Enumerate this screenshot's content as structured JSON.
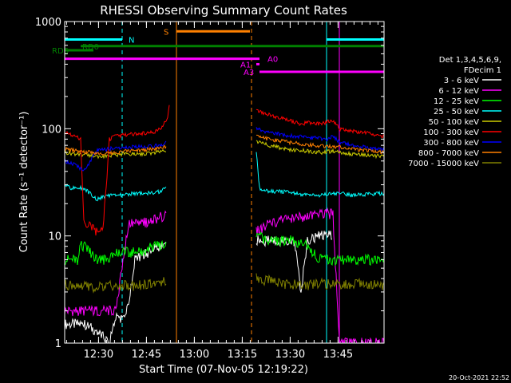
{
  "chart_data": {
    "type": "line",
    "title": "RHESSI Observing Summary Count Rates",
    "xlabel": "Start Time (07-Nov-05 12:19:22)",
    "ylabel": "Count Rate (s⁻¹ detector⁻¹)",
    "yscale": "log",
    "ylim": [
      1,
      1000
    ],
    "xlim_minutes": [
      0,
      100
    ],
    "x_ticks": [
      {
        "label": "12:30",
        "m": 10.6
      },
      {
        "label": "12:45",
        "m": 25.6
      },
      {
        "label": "13:00",
        "m": 40.6
      },
      {
        "label": "13:15",
        "m": 55.6
      },
      {
        "label": "13:30",
        "m": 70.6
      },
      {
        "label": "13:45",
        "m": 85.6
      }
    ],
    "y_ticks": [
      {
        "label": "1000",
        "v": 1000
      },
      {
        "label": "100",
        "v": 100
      },
      {
        "label": "10",
        "v": 10
      },
      {
        "label": "1",
        "v": 1
      }
    ],
    "legend_header": [
      "Det 1,3,4,5,6,9,",
      "FDecim 1"
    ],
    "series": [
      {
        "name": "3 - 6 keV",
        "color": "#ffffff",
        "values": [
          [
            0,
            1.5
          ],
          [
            6,
            1.5
          ],
          [
            10,
            1.3
          ],
          [
            14,
            1
          ],
          [
            16,
            1.8
          ],
          [
            18,
            1.7
          ],
          [
            20,
            2.2
          ],
          [
            22,
            6
          ],
          [
            26,
            7
          ],
          [
            30,
            8
          ],
          [
            32,
            9
          ],
          [
            44,
            null
          ],
          [
            60,
            9
          ],
          [
            64,
            9
          ],
          [
            72,
            9
          ],
          [
            74,
            3
          ],
          [
            76,
            9
          ],
          [
            80,
            10
          ],
          [
            84,
            10
          ],
          [
            86,
            null
          ]
        ]
      },
      {
        "name": "6 - 12 keV",
        "color": "#ff00ff",
        "values": [
          [
            0,
            2
          ],
          [
            4,
            2
          ],
          [
            8,
            2
          ],
          [
            12,
            2
          ],
          [
            16,
            2
          ],
          [
            20,
            13
          ],
          [
            24,
            13
          ],
          [
            28,
            14
          ],
          [
            30,
            15
          ],
          [
            32,
            16
          ],
          [
            44,
            null
          ],
          [
            60,
            11
          ],
          [
            64,
            13
          ],
          [
            68,
            14
          ],
          [
            72,
            15
          ],
          [
            76,
            15
          ],
          [
            80,
            16
          ],
          [
            84,
            16
          ],
          [
            86,
            1
          ],
          [
            100,
            1
          ]
        ]
      },
      {
        "name": "12 - 25 keV",
        "color": "#00ff00",
        "values": [
          [
            0,
            6
          ],
          [
            4,
            6
          ],
          [
            5,
            8
          ],
          [
            6,
            8
          ],
          [
            10,
            6
          ],
          [
            14,
            6
          ],
          [
            16,
            7
          ],
          [
            20,
            7
          ],
          [
            24,
            7
          ],
          [
            28,
            8
          ],
          [
            30,
            8
          ],
          [
            32,
            9
          ],
          [
            44,
            null
          ],
          [
            60,
            10
          ],
          [
            64,
            9
          ],
          [
            68,
            9
          ],
          [
            72,
            9
          ],
          [
            76,
            8
          ],
          [
            80,
            6
          ],
          [
            86,
            6
          ],
          [
            90,
            6
          ],
          [
            100,
            6
          ]
        ]
      },
      {
        "name": "25 - 50 keV",
        "color": "#00ffff",
        "values": [
          [
            0,
            30
          ],
          [
            2,
            28
          ],
          [
            6,
            28
          ],
          [
            10,
            22
          ],
          [
            14,
            24
          ],
          [
            18,
            24
          ],
          [
            22,
            25
          ],
          [
            26,
            25
          ],
          [
            30,
            26
          ],
          [
            32,
            28
          ],
          [
            44,
            null
          ],
          [
            60,
            60
          ],
          [
            61,
            28
          ],
          [
            64,
            26
          ],
          [
            68,
            26
          ],
          [
            72,
            25
          ],
          [
            76,
            24
          ],
          [
            80,
            24
          ],
          [
            84,
            25
          ],
          [
            86,
            25
          ],
          [
            90,
            24
          ],
          [
            100,
            25
          ]
        ]
      },
      {
        "name": "50 - 100 keV",
        "color": "#cccc00",
        "values": [
          [
            0,
            60
          ],
          [
            4,
            58
          ],
          [
            8,
            56
          ],
          [
            12,
            55
          ],
          [
            16,
            57
          ],
          [
            20,
            58
          ],
          [
            24,
            58
          ],
          [
            28,
            60
          ],
          [
            32,
            63
          ],
          [
            44,
            null
          ],
          [
            60,
            75
          ],
          [
            64,
            70
          ],
          [
            68,
            66
          ],
          [
            72,
            63
          ],
          [
            76,
            62
          ],
          [
            80,
            60
          ],
          [
            84,
            62
          ],
          [
            86,
            60
          ],
          [
            90,
            58
          ],
          [
            96,
            56
          ],
          [
            100,
            55
          ]
        ]
      },
      {
        "name": "100 - 300 keV",
        "color": "#ff0000",
        "values": [
          [
            0,
            95
          ],
          [
            1,
            90
          ],
          [
            3,
            85
          ],
          [
            5,
            80
          ],
          [
            6,
            13
          ],
          [
            10,
            11
          ],
          [
            12,
            11
          ],
          [
            14,
            80
          ],
          [
            16,
            85
          ],
          [
            20,
            88
          ],
          [
            24,
            90
          ],
          [
            28,
            92
          ],
          [
            30,
            100
          ],
          [
            32,
            120
          ],
          [
            33,
            180
          ],
          [
            44,
            null
          ],
          [
            60,
            150
          ],
          [
            62,
            140
          ],
          [
            66,
            130
          ],
          [
            70,
            120
          ],
          [
            74,
            110
          ],
          [
            76,
            115
          ],
          [
            80,
            110
          ],
          [
            84,
            120
          ],
          [
            86,
            100
          ],
          [
            90,
            95
          ],
          [
            96,
            90
          ],
          [
            100,
            85
          ]
        ]
      },
      {
        "name": "300 - 800 keV",
        "color": "#0000ff",
        "values": [
          [
            0,
            50
          ],
          [
            2,
            48
          ],
          [
            4,
            45
          ],
          [
            6,
            40
          ],
          [
            10,
            62
          ],
          [
            14,
            65
          ],
          [
            18,
            66
          ],
          [
            22,
            68
          ],
          [
            26,
            68
          ],
          [
            30,
            70
          ],
          [
            32,
            75
          ],
          [
            44,
            null
          ],
          [
            60,
            100
          ],
          [
            62,
            95
          ],
          [
            66,
            90
          ],
          [
            70,
            86
          ],
          [
            74,
            84
          ],
          [
            78,
            82
          ],
          [
            82,
            80
          ],
          [
            84,
            85
          ],
          [
            86,
            75
          ],
          [
            90,
            70
          ],
          [
            96,
            66
          ],
          [
            100,
            63
          ]
        ]
      },
      {
        "name": "800 - 7000 keV",
        "color": "#ff8000",
        "values": [
          [
            0,
            65
          ],
          [
            4,
            62
          ],
          [
            8,
            60
          ],
          [
            12,
            58
          ],
          [
            16,
            60
          ],
          [
            20,
            62
          ],
          [
            24,
            63
          ],
          [
            28,
            65
          ],
          [
            32,
            68
          ],
          [
            44,
            null
          ],
          [
            60,
            85
          ],
          [
            62,
            82
          ],
          [
            66,
            78
          ],
          [
            70,
            75
          ],
          [
            74,
            72
          ],
          [
            78,
            70
          ],
          [
            82,
            68
          ],
          [
            86,
            68
          ],
          [
            90,
            65
          ],
          [
            96,
            62
          ],
          [
            100,
            60
          ]
        ]
      },
      {
        "name": "7000 - 15000 keV",
        "color": "#808000",
        "values": [
          [
            0,
            3.5
          ],
          [
            4,
            3.5
          ],
          [
            8,
            3.3
          ],
          [
            12,
            3.3
          ],
          [
            16,
            3.5
          ],
          [
            20,
            3.4
          ],
          [
            24,
            3.5
          ],
          [
            28,
            3.6
          ],
          [
            32,
            3.8
          ],
          [
            44,
            null
          ],
          [
            60,
            4
          ],
          [
            64,
            3.8
          ],
          [
            68,
            3.6
          ],
          [
            72,
            3.5
          ],
          [
            76,
            3.5
          ],
          [
            80,
            3.6
          ],
          [
            84,
            3.5
          ],
          [
            88,
            3.5
          ],
          [
            92,
            3.6
          ],
          [
            96,
            3.5
          ],
          [
            100,
            3.5
          ]
        ]
      }
    ],
    "state_bars": [
      {
        "label": "N",
        "color": "#00ffff",
        "m_start": 0,
        "m_end": 18,
        "v": 680,
        "label_m": 20
      },
      {
        "label": "N",
        "color": "#00ffff",
        "m_start": 82,
        "m_end": 100,
        "v": 680,
        "label_m": null
      },
      {
        "label": "RD0",
        "color": "#008000",
        "m_start": 5,
        "m_end": 100,
        "v": 590,
        "label_m": 5.5
      },
      {
        "label": "RD6",
        "color": "#008000",
        "m_start": 0,
        "m_end": 9,
        "v": 540,
        "label_m": -4
      },
      {
        "label": "S",
        "color": "#ff8000",
        "m_start": 35,
        "m_end": 58,
        "v": 810,
        "label_m": 31
      },
      {
        "label": "A0",
        "color": "#ff00ff",
        "m_start": 0,
        "m_end": 61,
        "v": 450,
        "label_m": 63.5
      },
      {
        "label": "A1",
        "color": "#ff00ff",
        "m_start": 60,
        "m_end": 61,
        "v": 400,
        "label_m": 55
      },
      {
        "label": "A3",
        "color": "#ff00ff",
        "m_start": 61,
        "m_end": 100,
        "v": 340,
        "label_m": 56
      }
    ],
    "vlines": [
      {
        "m": 0,
        "color": "#00ffff",
        "dash": false
      },
      {
        "m": 18,
        "color": "#00ffff",
        "dash": true
      },
      {
        "m": 35,
        "color": "#ff8000",
        "dash": false
      },
      {
        "m": 58.5,
        "color": "#ff8000",
        "dash": true
      },
      {
        "m": 82,
        "color": "#00ffff",
        "dash": false
      },
      {
        "m": 100,
        "color": "#00ffff",
        "dash": true
      },
      {
        "m": 86,
        "color": "#ff00ff",
        "dash": false
      }
    ],
    "footer": "20-Oct-2021 22:52"
  }
}
